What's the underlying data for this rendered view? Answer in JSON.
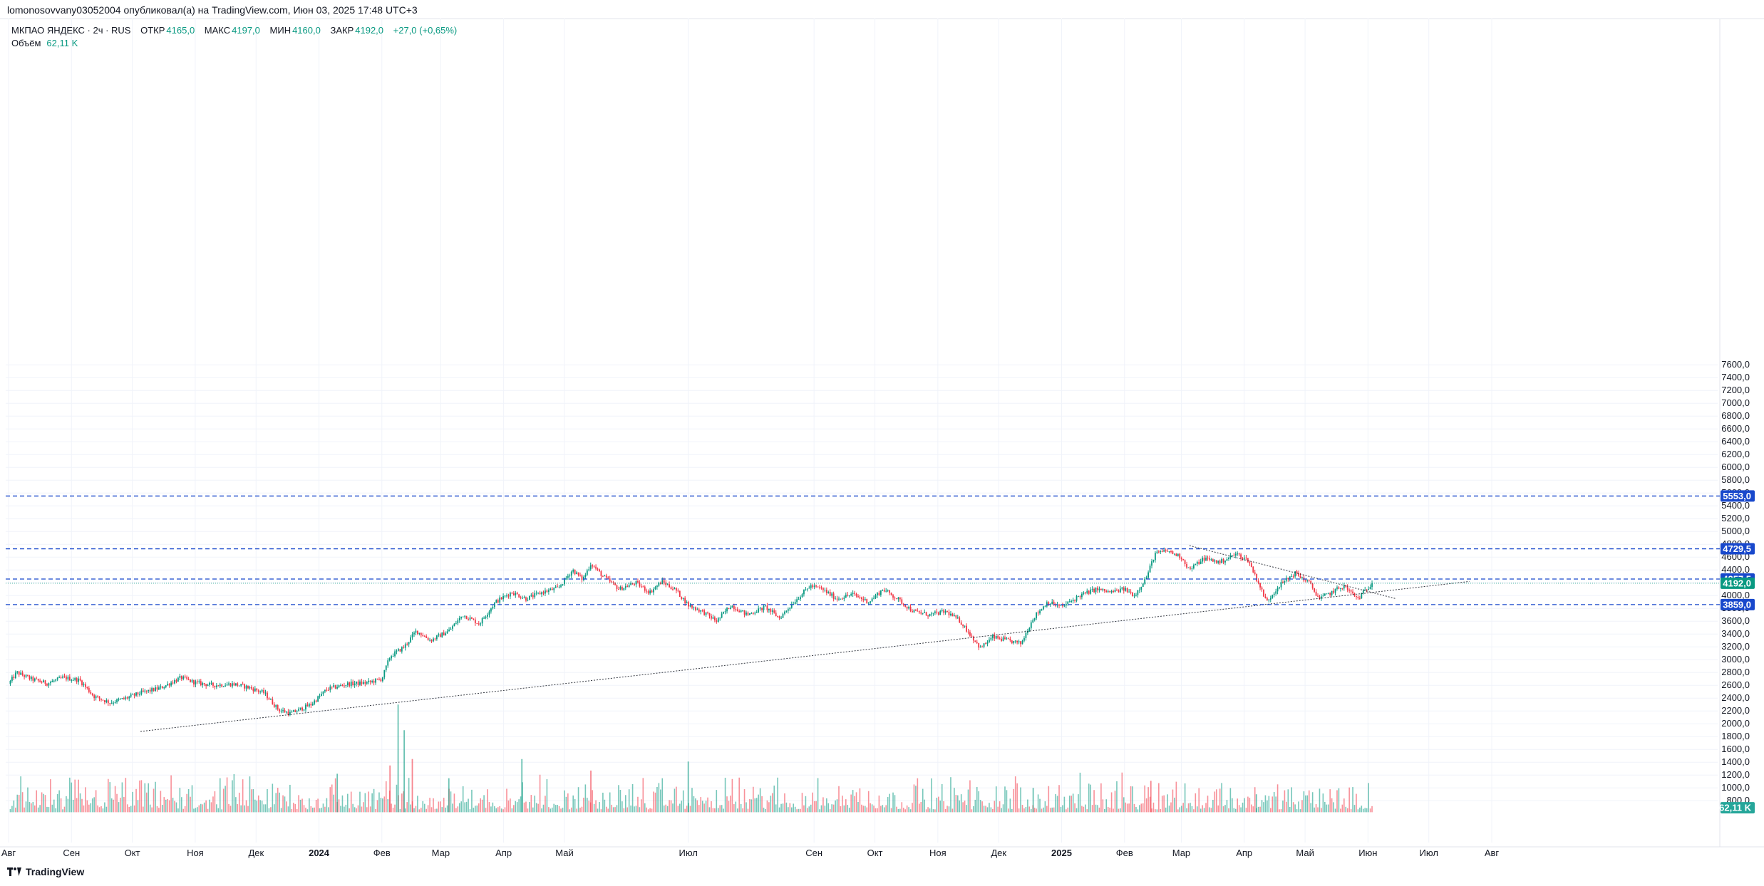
{
  "header": {
    "publish_line": "lomonosovvany03052004 опубликовал(а) на TradingView.com, Июн 03, 2025 17:48 UTC+3"
  },
  "legend": {
    "symbol": "МКПАО ЯНДЕКС · 2ч · RUS",
    "open_label": "ОТКР",
    "open_value": "4165,0",
    "high_label": "МАКС",
    "high_value": "4197,0",
    "low_label": "МИН",
    "low_value": "4160,0",
    "close_label": "ЗАКР",
    "close_value": "4192,0",
    "change": "+27,0 (+0,65%)",
    "volume_label": "Объём",
    "volume_value": "62,11 K"
  },
  "footer": {
    "brand": "TradingView"
  },
  "colors": {
    "up": "#089981",
    "down": "#f23645",
    "level_line": "#1848cc",
    "trend_line": "#131722",
    "grid": "#f0f3fa"
  },
  "chart_data": {
    "type": "candlestick",
    "title": "",
    "yaxis_ticks": [
      "800,0",
      "1000,0",
      "1200,0",
      "1400,0",
      "1600,0",
      "1800,0",
      "2000,0",
      "2200,0",
      "2400,0",
      "2600,0",
      "2800,0",
      "3000,0",
      "3200,0",
      "3400,0",
      "3600,0",
      "3800,0",
      "4000,0",
      "4200,0",
      "4400,0",
      "4600,0",
      "4800,0",
      "5000,0",
      "5200,0",
      "5400,0",
      "5600,0",
      "5800,0",
      "6000,0",
      "6200,0",
      "6400,0",
      "6600,0",
      "6800,0",
      "7000,0",
      "7200,0",
      "7400,0",
      "7600,0"
    ],
    "ylim": [
      620,
      7620
    ],
    "xaxis_ticks": [
      {
        "label": "Авг",
        "date": "2023-08-01"
      },
      {
        "label": "Сен",
        "date": "2023-09-01"
      },
      {
        "label": "Окт",
        "date": "2023-10-01"
      },
      {
        "label": "Ноя",
        "date": "2023-11-01"
      },
      {
        "label": "Дек",
        "date": "2023-12-01"
      },
      {
        "label": "2024",
        "date": "2024-01-01"
      },
      {
        "label": "Фев",
        "date": "2024-02-01"
      },
      {
        "label": "Мар",
        "date": "2024-03-01"
      },
      {
        "label": "Апр",
        "date": "2024-04-01"
      },
      {
        "label": "Май",
        "date": "2024-05-01"
      },
      {
        "label": "Июл",
        "date": "2024-07-01"
      },
      {
        "label": "Сен",
        "date": "2024-09-01"
      },
      {
        "label": "Окт",
        "date": "2024-10-01"
      },
      {
        "label": "Ноя",
        "date": "2024-11-01"
      },
      {
        "label": "Дек",
        "date": "2024-12-01"
      },
      {
        "label": "2025",
        "date": "2025-01-01"
      },
      {
        "label": "Фев",
        "date": "2025-02-01"
      },
      {
        "label": "Мар",
        "date": "2025-03-01"
      },
      {
        "label": "Апр",
        "date": "2025-04-01"
      },
      {
        "label": "Май",
        "date": "2025-05-01"
      },
      {
        "label": "Июн",
        "date": "2025-06-01"
      },
      {
        "label": "Июл",
        "date": "2025-07-01"
      },
      {
        "label": "Авг",
        "date": "2025-08-01"
      }
    ],
    "price_path": [
      {
        "date": "2023-08-01",
        "price": 2620
      },
      {
        "date": "2023-08-05",
        "price": 2800
      },
      {
        "date": "2023-08-12",
        "price": 2700
      },
      {
        "date": "2023-08-20",
        "price": 2630
      },
      {
        "date": "2023-08-28",
        "price": 2720
      },
      {
        "date": "2023-09-05",
        "price": 2680
      },
      {
        "date": "2023-09-12",
        "price": 2430
      },
      {
        "date": "2023-09-20",
        "price": 2330
      },
      {
        "date": "2023-09-28",
        "price": 2400
      },
      {
        "date": "2023-10-05",
        "price": 2480
      },
      {
        "date": "2023-10-15",
        "price": 2560
      },
      {
        "date": "2023-10-25",
        "price": 2720
      },
      {
        "date": "2023-11-01",
        "price": 2640
      },
      {
        "date": "2023-11-10",
        "price": 2600
      },
      {
        "date": "2023-11-20",
        "price": 2620
      },
      {
        "date": "2023-11-28",
        "price": 2560
      },
      {
        "date": "2023-12-05",
        "price": 2480
      },
      {
        "date": "2023-12-12",
        "price": 2220
      },
      {
        "date": "2023-12-18",
        "price": 2160
      },
      {
        "date": "2023-12-28",
        "price": 2300
      },
      {
        "date": "2024-01-05",
        "price": 2540
      },
      {
        "date": "2024-01-15",
        "price": 2620
      },
      {
        "date": "2024-01-25",
        "price": 2640
      },
      {
        "date": "2024-02-01",
        "price": 2700
      },
      {
        "date": "2024-02-05",
        "price": 3050
      },
      {
        "date": "2024-02-12",
        "price": 3200
      },
      {
        "date": "2024-02-18",
        "price": 3450
      },
      {
        "date": "2024-02-25",
        "price": 3300
      },
      {
        "date": "2024-03-05",
        "price": 3450
      },
      {
        "date": "2024-03-12",
        "price": 3700
      },
      {
        "date": "2024-03-20",
        "price": 3560
      },
      {
        "date": "2024-03-28",
        "price": 3900
      },
      {
        "date": "2024-04-05",
        "price": 4050
      },
      {
        "date": "2024-04-12",
        "price": 3950
      },
      {
        "date": "2024-04-20",
        "price": 4050
      },
      {
        "date": "2024-04-28",
        "price": 4120
      },
      {
        "date": "2024-05-05",
        "price": 4400
      },
      {
        "date": "2024-05-10",
        "price": 4250
      },
      {
        "date": "2024-05-14",
        "price": 4500
      },
      {
        "date": "2024-05-20",
        "price": 4300
      },
      {
        "date": "2024-05-28",
        "price": 4100
      },
      {
        "date": "2024-06-05",
        "price": 4200
      },
      {
        "date": "2024-06-12",
        "price": 4050
      },
      {
        "date": "2024-06-18",
        "price": 4220
      },
      {
        "date": "2024-06-25",
        "price": 4080
      },
      {
        "date": "2024-07-01",
        "price": 3850
      },
      {
        "date": "2024-07-08",
        "price": 3750
      },
      {
        "date": "2024-07-15",
        "price": 3600
      },
      {
        "date": "2024-07-22",
        "price": 3850
      },
      {
        "date": "2024-07-30",
        "price": 3700
      },
      {
        "date": "2024-08-08",
        "price": 3820
      },
      {
        "date": "2024-08-15",
        "price": 3650
      },
      {
        "date": "2024-08-22",
        "price": 3900
      },
      {
        "date": "2024-08-30",
        "price": 4150
      },
      {
        "date": "2024-09-05",
        "price": 4100
      },
      {
        "date": "2024-09-12",
        "price": 3950
      },
      {
        "date": "2024-09-20",
        "price": 4020
      },
      {
        "date": "2024-09-28",
        "price": 3900
      },
      {
        "date": "2024-10-05",
        "price": 4100
      },
      {
        "date": "2024-10-12",
        "price": 3950
      },
      {
        "date": "2024-10-20",
        "price": 3750
      },
      {
        "date": "2024-10-28",
        "price": 3700
      },
      {
        "date": "2024-11-05",
        "price": 3750
      },
      {
        "date": "2024-11-12",
        "price": 3600
      },
      {
        "date": "2024-11-18",
        "price": 3350
      },
      {
        "date": "2024-11-22",
        "price": 3180
      },
      {
        "date": "2024-11-28",
        "price": 3350
      },
      {
        "date": "2024-12-05",
        "price": 3300
      },
      {
        "date": "2024-12-12",
        "price": 3250
      },
      {
        "date": "2024-12-18",
        "price": 3650
      },
      {
        "date": "2024-12-25",
        "price": 3900
      },
      {
        "date": "2025-01-01",
        "price": 3820
      },
      {
        "date": "2025-01-10",
        "price": 4000
      },
      {
        "date": "2025-01-18",
        "price": 4100
      },
      {
        "date": "2025-01-25",
        "price": 4050
      },
      {
        "date": "2025-02-01",
        "price": 4100
      },
      {
        "date": "2025-02-06",
        "price": 4000
      },
      {
        "date": "2025-02-12",
        "price": 4300
      },
      {
        "date": "2025-02-16",
        "price": 4650
      },
      {
        "date": "2025-02-22",
        "price": 4700
      },
      {
        "date": "2025-03-01",
        "price": 4600
      },
      {
        "date": "2025-03-05",
        "price": 4400
      },
      {
        "date": "2025-03-12",
        "price": 4580
      },
      {
        "date": "2025-03-20",
        "price": 4520
      },
      {
        "date": "2025-03-28",
        "price": 4650
      },
      {
        "date": "2025-04-03",
        "price": 4550
      },
      {
        "date": "2025-04-08",
        "price": 4200
      },
      {
        "date": "2025-04-12",
        "price": 3900
      },
      {
        "date": "2025-04-18",
        "price": 4150
      },
      {
        "date": "2025-04-26",
        "price": 4350
      },
      {
        "date": "2025-05-03",
        "price": 4200
      },
      {
        "date": "2025-05-08",
        "price": 3950
      },
      {
        "date": "2025-05-14",
        "price": 4050
      },
      {
        "date": "2025-05-20",
        "price": 4150
      },
      {
        "date": "2025-05-27",
        "price": 3950
      },
      {
        "date": "2025-06-03",
        "price": 4192
      }
    ],
    "volume_spikes": [
      {
        "date": "2024-01-10",
        "value": 1220
      },
      {
        "date": "2024-02-05",
        "value": 1350
      },
      {
        "date": "2024-02-09",
        "value": 2300
      },
      {
        "date": "2024-02-12",
        "value": 1900
      },
      {
        "date": "2024-02-16",
        "value": 1450
      },
      {
        "date": "2024-03-05",
        "value": 1150
      },
      {
        "date": "2024-04-10",
        "value": 1450
      },
      {
        "date": "2024-05-14",
        "value": 1270
      },
      {
        "date": "2024-07-01",
        "value": 1410
      },
      {
        "date": "2024-12-18",
        "value": 1000
      },
      {
        "date": "2025-02-14",
        "value": 1110
      },
      {
        "date": "2025-04-07",
        "value": 900
      }
    ],
    "volume_current": "62,11 K",
    "horizontal_levels": [
      {
        "value": 5553,
        "label": "5553,0"
      },
      {
        "value": 4729.5,
        "label": "4729,5"
      },
      {
        "value": 4257.5,
        "label": "4257,5"
      },
      {
        "value": 3859,
        "label": "3859,0"
      }
    ],
    "last_price": {
      "value": 4192,
      "label": "4192,0"
    },
    "trend_lines": [
      {
        "name": "support",
        "start": {
          "date": "2023-10-05",
          "price": 1880
        },
        "end": {
          "date": "2025-07-21",
          "price": 4220
        }
      },
      {
        "name": "resistance",
        "start": {
          "date": "2025-03-05",
          "price": 4780
        },
        "end": {
          "date": "2025-06-15",
          "price": 3950
        }
      }
    ],
    "grid": true
  }
}
